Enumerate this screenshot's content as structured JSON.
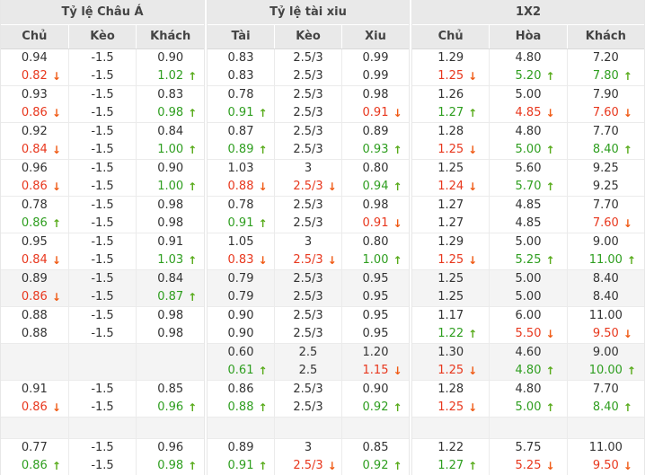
{
  "colors": {
    "header_bg": "#e9e9e9",
    "shade_row_bg": "#f4f4f4",
    "up": "#2e9e1f",
    "up_arrow": "#58ab1a",
    "down": "#e8371d",
    "down_arrow": "#f05a14"
  },
  "sections": [
    {
      "id": "asian",
      "title": "Tỷ lệ Châu Á",
      "columns": [
        "Chủ",
        "Kèo",
        "Khách"
      ]
    },
    {
      "id": "overunder",
      "title": "Tỷ lệ tài xiu",
      "columns": [
        "Tài",
        "Kèo",
        "Xiu"
      ]
    },
    {
      "id": "onextwo",
      "title": "1X2",
      "columns": [
        "Chủ",
        "Hòa",
        "Khách"
      ]
    }
  ],
  "rows": [
    {
      "shade": false,
      "short": false,
      "asian": [
        [
          "0.94",
          "-1.5",
          "0.90"
        ],
        [
          {
            "v": "0.82",
            "t": "down"
          },
          "-1.5",
          {
            "v": "1.02",
            "t": "up"
          }
        ]
      ],
      "overunder": [
        [
          "0.83",
          "2.5/3",
          "0.99"
        ],
        [
          "0.83",
          "2.5/3",
          "0.99"
        ]
      ],
      "onextwo": [
        [
          "1.29",
          "4.80",
          "7.20"
        ],
        [
          {
            "v": "1.25",
            "t": "down"
          },
          {
            "v": "5.20",
            "t": "up"
          },
          {
            "v": "7.80",
            "t": "up"
          }
        ]
      ]
    },
    {
      "shade": false,
      "short": false,
      "asian": [
        [
          "0.93",
          "-1.5",
          "0.83"
        ],
        [
          {
            "v": "0.86",
            "t": "down"
          },
          "-1.5",
          {
            "v": "0.98",
            "t": "up"
          }
        ]
      ],
      "overunder": [
        [
          "0.78",
          "2.5/3",
          "0.98"
        ],
        [
          {
            "v": "0.91",
            "t": "up"
          },
          "2.5/3",
          {
            "v": "0.91",
            "t": "down"
          }
        ]
      ],
      "onextwo": [
        [
          "1.26",
          "5.00",
          "7.90"
        ],
        [
          {
            "v": "1.27",
            "t": "up"
          },
          {
            "v": "4.85",
            "t": "down"
          },
          {
            "v": "7.60",
            "t": "down"
          }
        ]
      ]
    },
    {
      "shade": false,
      "short": false,
      "asian": [
        [
          "0.92",
          "-1.5",
          "0.84"
        ],
        [
          {
            "v": "0.84",
            "t": "down"
          },
          "-1.5",
          {
            "v": "1.00",
            "t": "up"
          }
        ]
      ],
      "overunder": [
        [
          "0.87",
          "2.5/3",
          "0.89"
        ],
        [
          {
            "v": "0.89",
            "t": "up"
          },
          "2.5/3",
          {
            "v": "0.93",
            "t": "up"
          }
        ]
      ],
      "onextwo": [
        [
          "1.28",
          "4.80",
          "7.70"
        ],
        [
          {
            "v": "1.25",
            "t": "down"
          },
          {
            "v": "5.00",
            "t": "up"
          },
          {
            "v": "8.40",
            "t": "up"
          }
        ]
      ]
    },
    {
      "shade": false,
      "short": false,
      "asian": [
        [
          "0.96",
          "-1.5",
          "0.90"
        ],
        [
          {
            "v": "0.86",
            "t": "down"
          },
          "-1.5",
          {
            "v": "1.00",
            "t": "up"
          }
        ]
      ],
      "overunder": [
        [
          "1.03",
          "3",
          "0.80"
        ],
        [
          {
            "v": "0.88",
            "t": "down"
          },
          {
            "v": "2.5/3",
            "t": "down"
          },
          {
            "v": "0.94",
            "t": "up"
          }
        ]
      ],
      "onextwo": [
        [
          "1.25",
          "5.60",
          "9.25"
        ],
        [
          {
            "v": "1.24",
            "t": "down"
          },
          {
            "v": "5.70",
            "t": "up"
          },
          "9.25"
        ]
      ]
    },
    {
      "shade": false,
      "short": false,
      "asian": [
        [
          "0.78",
          "-1.5",
          "0.98"
        ],
        [
          {
            "v": "0.86",
            "t": "up"
          },
          "-1.5",
          "0.98"
        ]
      ],
      "overunder": [
        [
          "0.78",
          "2.5/3",
          "0.98"
        ],
        [
          {
            "v": "0.91",
            "t": "up"
          },
          "2.5/3",
          {
            "v": "0.91",
            "t": "down"
          }
        ]
      ],
      "onextwo": [
        [
          "1.27",
          "4.85",
          "7.70"
        ],
        [
          "1.27",
          "4.85",
          {
            "v": "7.60",
            "t": "down"
          }
        ]
      ]
    },
    {
      "shade": false,
      "short": false,
      "asian": [
        [
          "0.95",
          "-1.5",
          "0.91"
        ],
        [
          {
            "v": "0.84",
            "t": "down"
          },
          "-1.5",
          {
            "v": "1.03",
            "t": "up"
          }
        ]
      ],
      "overunder": [
        [
          "1.05",
          "3",
          "0.80"
        ],
        [
          {
            "v": "0.83",
            "t": "down"
          },
          {
            "v": "2.5/3",
            "t": "down"
          },
          {
            "v": "1.00",
            "t": "up"
          }
        ]
      ],
      "onextwo": [
        [
          "1.29",
          "5.00",
          "9.00"
        ],
        [
          {
            "v": "1.25",
            "t": "down"
          },
          {
            "v": "5.25",
            "t": "up"
          },
          {
            "v": "11.00",
            "t": "up"
          }
        ]
      ]
    },
    {
      "shade": true,
      "short": false,
      "asian": [
        [
          "0.89",
          "-1.5",
          "0.84"
        ],
        [
          {
            "v": "0.86",
            "t": "down"
          },
          "-1.5",
          {
            "v": "0.87",
            "t": "up"
          }
        ]
      ],
      "overunder": [
        [
          "0.79",
          "2.5/3",
          "0.95"
        ],
        [
          "0.79",
          "2.5/3",
          "0.95"
        ]
      ],
      "onextwo": [
        [
          "1.25",
          "5.00",
          "8.40"
        ],
        [
          "1.25",
          "5.00",
          "8.40"
        ]
      ]
    },
    {
      "shade": false,
      "short": false,
      "asian": [
        [
          "0.88",
          "-1.5",
          "0.98"
        ],
        [
          "0.88",
          "-1.5",
          "0.98"
        ]
      ],
      "overunder": [
        [
          "0.90",
          "2.5/3",
          "0.95"
        ],
        [
          "0.90",
          "2.5/3",
          "0.95"
        ]
      ],
      "onextwo": [
        [
          "1.17",
          "6.00",
          "11.00"
        ],
        [
          {
            "v": "1.22",
            "t": "up"
          },
          {
            "v": "5.50",
            "t": "down"
          },
          {
            "v": "9.50",
            "t": "down"
          }
        ]
      ]
    },
    {
      "shade": true,
      "short": false,
      "asian": [
        [
          "",
          "",
          ""
        ],
        [
          "",
          "",
          ""
        ]
      ],
      "overunder": [
        [
          "0.60",
          "2.5",
          "1.20"
        ],
        [
          {
            "v": "0.61",
            "t": "up"
          },
          "2.5",
          {
            "v": "1.15",
            "t": "down"
          }
        ]
      ],
      "onextwo": [
        [
          "1.30",
          "4.60",
          "9.00"
        ],
        [
          {
            "v": "1.25",
            "t": "down"
          },
          {
            "v": "4.80",
            "t": "up"
          },
          {
            "v": "10.00",
            "t": "up"
          }
        ]
      ]
    },
    {
      "shade": false,
      "short": false,
      "asian": [
        [
          "0.91",
          "-1.5",
          "0.85"
        ],
        [
          {
            "v": "0.86",
            "t": "down"
          },
          "-1.5",
          {
            "v": "0.96",
            "t": "up"
          }
        ]
      ],
      "overunder": [
        [
          "0.86",
          "2.5/3",
          "0.90"
        ],
        [
          {
            "v": "0.88",
            "t": "up"
          },
          "2.5/3",
          {
            "v": "0.92",
            "t": "up"
          }
        ]
      ],
      "onextwo": [
        [
          "1.28",
          "4.80",
          "7.70"
        ],
        [
          {
            "v": "1.25",
            "t": "down"
          },
          {
            "v": "5.00",
            "t": "up"
          },
          {
            "v": "8.40",
            "t": "up"
          }
        ]
      ]
    },
    {
      "shade": true,
      "short": true,
      "asian": [
        [
          "",
          "",
          ""
        ]
      ],
      "overunder": [
        [
          "",
          "",
          ""
        ]
      ],
      "onextwo": [
        [
          "",
          "",
          ""
        ]
      ]
    },
    {
      "shade": false,
      "short": false,
      "asian": [
        [
          "0.77",
          "-1.5",
          "0.96"
        ],
        [
          {
            "v": "0.86",
            "t": "up"
          },
          "-1.5",
          {
            "v": "0.98",
            "t": "up"
          }
        ]
      ],
      "overunder": [
        [
          "0.89",
          "3",
          "0.85"
        ],
        [
          {
            "v": "0.91",
            "t": "up"
          },
          {
            "v": "2.5/3",
            "t": "down"
          },
          {
            "v": "0.92",
            "t": "up"
          }
        ]
      ],
      "onextwo": [
        [
          "1.22",
          "5.75",
          "11.00"
        ],
        [
          {
            "v": "1.27",
            "t": "up"
          },
          {
            "v": "5.25",
            "t": "down"
          },
          {
            "v": "9.50",
            "t": "down"
          }
        ]
      ]
    }
  ]
}
